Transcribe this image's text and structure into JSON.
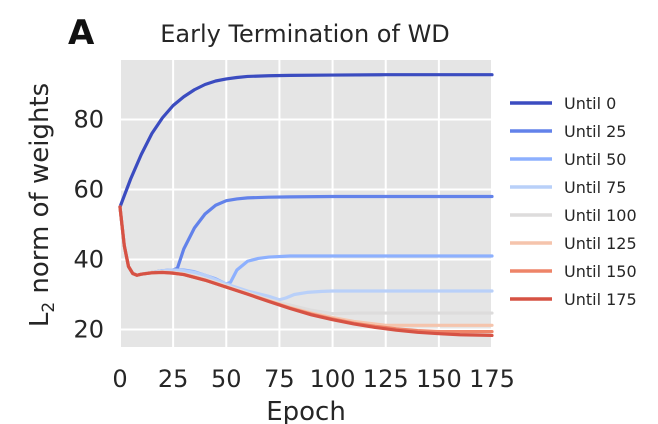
{
  "panel_label": "A",
  "chart_data": {
    "type": "line",
    "title": "Early Termination of WD",
    "xlabel": "Epoch",
    "ylabel": "L2 norm of weights",
    "ylabel_main": "L",
    "ylabel_sub": "2",
    "ylabel_rest": " norm of weights",
    "xlim": [
      0,
      175
    ],
    "ylim": [
      15,
      97
    ],
    "xticks": [
      "0",
      "25",
      "50",
      "75",
      "100",
      "125",
      "150",
      "175"
    ],
    "yticks": [
      "20",
      "40",
      "60",
      "80"
    ],
    "grid": true,
    "legend_position": "right",
    "series": [
      {
        "name": "Until 0",
        "color": "#3b4cc0",
        "x": [
          0,
          5,
          10,
          15,
          20,
          25,
          30,
          35,
          40,
          45,
          50,
          55,
          60,
          70,
          80,
          100,
          125,
          150,
          175
        ],
        "y": [
          55,
          63,
          70,
          76,
          80.5,
          84,
          86.5,
          88.5,
          90,
          91,
          91.6,
          92,
          92.3,
          92.5,
          92.6,
          92.7,
          92.8,
          92.8,
          92.8
        ]
      },
      {
        "name": "Until 25",
        "color": "#6282ea",
        "x": [
          0,
          2,
          4,
          6,
          8,
          10,
          15,
          20,
          25,
          27,
          30,
          35,
          40,
          45,
          50,
          55,
          60,
          70,
          80,
          100,
          125,
          150,
          175
        ],
        "y": [
          55,
          44,
          38,
          36,
          35.5,
          35.8,
          36.3,
          36.8,
          37,
          37.5,
          43,
          49,
          53,
          55.5,
          56.8,
          57.3,
          57.6,
          57.8,
          57.9,
          58,
          58,
          58,
          58
        ]
      },
      {
        "name": "Until 50",
        "color": "#8db0fe",
        "x": [
          0,
          2,
          4,
          6,
          8,
          10,
          15,
          20,
          25,
          30,
          35,
          40,
          45,
          50,
          52,
          55,
          60,
          65,
          70,
          80,
          90,
          100,
          125,
          150,
          175
        ],
        "y": [
          55,
          44,
          38,
          36,
          35.5,
          35.8,
          36.3,
          36.8,
          37,
          37,
          36.5,
          35.5,
          34.5,
          33,
          33.5,
          37,
          39.5,
          40.3,
          40.7,
          41,
          41,
          41,
          41,
          41,
          41
        ]
      },
      {
        "name": "Until 75",
        "color": "#b9d0f9",
        "x": [
          0,
          2,
          4,
          6,
          8,
          10,
          15,
          20,
          25,
          30,
          35,
          40,
          50,
          60,
          70,
          75,
          78,
          82,
          88,
          95,
          100,
          125,
          150,
          175
        ],
        "y": [
          55,
          44,
          38,
          36,
          35.5,
          35.8,
          36.3,
          36.8,
          37,
          36.8,
          36.3,
          35.5,
          33,
          31,
          29.5,
          28.5,
          29,
          30,
          30.6,
          30.9,
          31,
          31,
          31,
          31
        ]
      },
      {
        "name": "Until 100",
        "color": "#dddcdc",
        "x": [
          0,
          2,
          4,
          6,
          8,
          10,
          15,
          20,
          25,
          30,
          40,
          50,
          60,
          70,
          80,
          90,
          100,
          105,
          112,
          125,
          150,
          175
        ],
        "y": [
          55,
          44,
          38,
          36,
          35.5,
          35.8,
          36.3,
          36.5,
          36.3,
          36,
          34.5,
          32.5,
          30.5,
          28.5,
          27,
          25.5,
          24.5,
          24.6,
          24.7,
          24.7,
          24.7,
          24.7
        ]
      },
      {
        "name": "Until 125",
        "color": "#f5c4ac",
        "x": [
          0,
          2,
          4,
          6,
          8,
          10,
          15,
          20,
          25,
          30,
          40,
          50,
          60,
          70,
          80,
          90,
          100,
          110,
          125,
          130,
          140,
          150,
          175
        ],
        "y": [
          55,
          44,
          38,
          36,
          35.5,
          35.8,
          36.3,
          36.4,
          36.2,
          35.8,
          34.2,
          32.2,
          30.2,
          28.2,
          26.3,
          24.7,
          23.4,
          22.3,
          21.2,
          21.2,
          21.2,
          21.2,
          21.2
        ]
      },
      {
        "name": "Until 150",
        "color": "#ee8468",
        "x": [
          0,
          2,
          4,
          6,
          8,
          10,
          15,
          20,
          25,
          30,
          40,
          50,
          60,
          70,
          80,
          90,
          100,
          110,
          120,
          130,
          140,
          150,
          160,
          175
        ],
        "y": [
          55,
          44,
          38,
          36,
          35.5,
          35.8,
          36.2,
          36.3,
          36.1,
          35.7,
          34.1,
          32.1,
          30.1,
          28.1,
          26.1,
          24.4,
          23,
          21.8,
          20.9,
          20.2,
          19.7,
          19.4,
          19.4,
          19.4
        ]
      },
      {
        "name": "Until 175",
        "color": "#d65244",
        "x": [
          0,
          2,
          4,
          6,
          8,
          10,
          15,
          20,
          25,
          30,
          40,
          50,
          60,
          70,
          80,
          90,
          100,
          110,
          120,
          130,
          140,
          150,
          160,
          175
        ],
        "y": [
          55,
          44,
          38,
          36,
          35.5,
          35.8,
          36.2,
          36.3,
          36.1,
          35.7,
          34.1,
          32.1,
          30.1,
          28,
          26,
          24.2,
          22.8,
          21.6,
          20.6,
          19.8,
          19.2,
          18.8,
          18.5,
          18.3
        ]
      }
    ]
  }
}
